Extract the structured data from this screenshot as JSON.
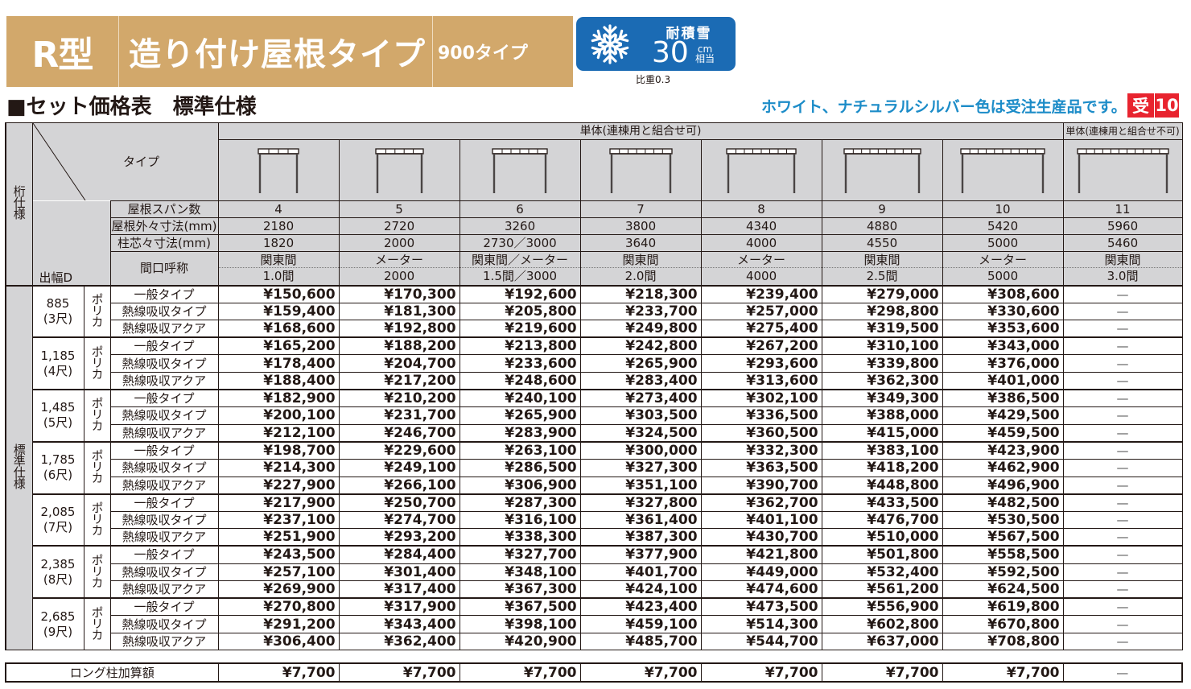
{
  "banner": {
    "model": "R型",
    "title": "造り付け屋根タイプ",
    "subtype": "900タイプ"
  },
  "snow_badge": {
    "icon": "snowflake-icon",
    "label": "耐積雪",
    "value": "30",
    "unit_top": "cm",
    "unit_bottom": "相当",
    "gravity": "比重0.3",
    "color": "#1b6bb4"
  },
  "section_title": "■セット価格表　標準仕様",
  "notice": {
    "text": "ホワイト、ナチュラルシルバー色は受注生産品です。",
    "badge_a": "受",
    "badge_b": "10",
    "text_color": "#1c8cc8",
    "badge_color": "#e8242f"
  },
  "table": {
    "side_label_top": "桁仕様",
    "side_label_bottom": "標準仕様",
    "type_label": "タイプ",
    "depth_label": "出幅D",
    "group_combinable": "単体(連棟用と組合せ可)",
    "group_single": "単体(連棟用と組合せ不可)",
    "row_labels": {
      "span_count": "屋根スパン数",
      "roof_outer": "屋根外々寸法(mm)",
      "post_center": "柱芯々寸法(mm)",
      "frontage": "間口呼称"
    },
    "columns": [
      {
        "icon_bays": 4,
        "span": "4",
        "roof_outer": "2180",
        "post_center": "1820",
        "frontage_top": "関東間",
        "frontage_bottom": "1.0間"
      },
      {
        "icon_bays": 5,
        "span": "5",
        "roof_outer": "2720",
        "post_center": "2000",
        "frontage_top": "メーター",
        "frontage_bottom": "2000"
      },
      {
        "icon_bays": 6,
        "span": "6",
        "roof_outer": "3260",
        "post_center": "2730／3000",
        "frontage_top": "関東間／メーター",
        "frontage_bottom": "1.5間／3000"
      },
      {
        "icon_bays": 7,
        "span": "7",
        "roof_outer": "3800",
        "post_center": "3640",
        "frontage_top": "関東間",
        "frontage_bottom": "2.0間"
      },
      {
        "icon_bays": 8,
        "span": "8",
        "roof_outer": "4340",
        "post_center": "4000",
        "frontage_top": "メーター",
        "frontage_bottom": "4000"
      },
      {
        "icon_bays": 9,
        "span": "9",
        "roof_outer": "4880",
        "post_center": "4550",
        "frontage_top": "関東間",
        "frontage_bottom": "2.5間"
      },
      {
        "icon_bays": 10,
        "span": "10",
        "roof_outer": "5420",
        "post_center": "5000",
        "frontage_top": "メーター",
        "frontage_bottom": "5000"
      },
      {
        "icon_bays": 11,
        "span": "11",
        "roof_outer": "5960",
        "post_center": "5460",
        "frontage_top": "関東間",
        "frontage_bottom": "3.0間"
      }
    ],
    "material": "ポリカ",
    "panel_types": [
      "一般タイプ",
      "熱線吸収タイプ",
      "熱線吸収アクア"
    ],
    "groups": [
      {
        "depth": "885",
        "shaku": "(3尺)",
        "rows": [
          [
            "¥150,600",
            "¥170,300",
            "¥192,600",
            "¥218,300",
            "¥239,400",
            "¥279,000",
            "¥308,600",
            "—"
          ],
          [
            "¥159,400",
            "¥181,300",
            "¥205,800",
            "¥233,700",
            "¥257,000",
            "¥298,800",
            "¥330,600",
            "—"
          ],
          [
            "¥168,600",
            "¥192,800",
            "¥219,600",
            "¥249,800",
            "¥275,400",
            "¥319,500",
            "¥353,600",
            "—"
          ]
        ]
      },
      {
        "depth": "1,185",
        "shaku": "(4尺)",
        "rows": [
          [
            "¥165,200",
            "¥188,200",
            "¥213,800",
            "¥242,800",
            "¥267,200",
            "¥310,100",
            "¥343,000",
            "—"
          ],
          [
            "¥178,400",
            "¥204,700",
            "¥233,600",
            "¥265,900",
            "¥293,600",
            "¥339,800",
            "¥376,000",
            "—"
          ],
          [
            "¥188,400",
            "¥217,200",
            "¥248,600",
            "¥283,400",
            "¥313,600",
            "¥362,300",
            "¥401,000",
            "—"
          ]
        ]
      },
      {
        "depth": "1,485",
        "shaku": "(5尺)",
        "rows": [
          [
            "¥182,900",
            "¥210,200",
            "¥240,100",
            "¥273,400",
            "¥302,100",
            "¥349,300",
            "¥386,500",
            "—"
          ],
          [
            "¥200,100",
            "¥231,700",
            "¥265,900",
            "¥303,500",
            "¥336,500",
            "¥388,000",
            "¥429,500",
            "—"
          ],
          [
            "¥212,100",
            "¥246,700",
            "¥283,900",
            "¥324,500",
            "¥360,500",
            "¥415,000",
            "¥459,500",
            "—"
          ]
        ]
      },
      {
        "depth": "1,785",
        "shaku": "(6尺)",
        "rows": [
          [
            "¥198,700",
            "¥229,600",
            "¥263,100",
            "¥300,000",
            "¥332,300",
            "¥383,100",
            "¥423,900",
            "—"
          ],
          [
            "¥214,300",
            "¥249,100",
            "¥286,500",
            "¥327,300",
            "¥363,500",
            "¥418,200",
            "¥462,900",
            "—"
          ],
          [
            "¥227,900",
            "¥266,100",
            "¥306,900",
            "¥351,100",
            "¥390,700",
            "¥448,800",
            "¥496,900",
            "—"
          ]
        ]
      },
      {
        "depth": "2,085",
        "shaku": "(7尺)",
        "rows": [
          [
            "¥217,900",
            "¥250,700",
            "¥287,300",
            "¥327,800",
            "¥362,700",
            "¥433,500",
            "¥482,500",
            "—"
          ],
          [
            "¥237,100",
            "¥274,700",
            "¥316,100",
            "¥361,400",
            "¥401,100",
            "¥476,700",
            "¥530,500",
            "—"
          ],
          [
            "¥251,900",
            "¥293,200",
            "¥338,300",
            "¥387,300",
            "¥430,700",
            "¥510,000",
            "¥567,500",
            "—"
          ]
        ]
      },
      {
        "depth": "2,385",
        "shaku": "(8尺)",
        "rows": [
          [
            "¥243,500",
            "¥284,400",
            "¥327,700",
            "¥377,900",
            "¥421,800",
            "¥501,800",
            "¥558,500",
            "—"
          ],
          [
            "¥257,100",
            "¥301,400",
            "¥348,100",
            "¥401,700",
            "¥449,000",
            "¥532,400",
            "¥592,500",
            "—"
          ],
          [
            "¥269,900",
            "¥317,400",
            "¥367,300",
            "¥424,100",
            "¥474,600",
            "¥561,200",
            "¥624,500",
            "—"
          ]
        ]
      },
      {
        "depth": "2,685",
        "shaku": "(9尺)",
        "rows": [
          [
            "¥270,800",
            "¥317,900",
            "¥367,500",
            "¥423,400",
            "¥473,500",
            "¥556,900",
            "¥619,800",
            "—"
          ],
          [
            "¥291,200",
            "¥343,400",
            "¥398,100",
            "¥459,100",
            "¥514,300",
            "¥602,800",
            "¥670,800",
            "—"
          ],
          [
            "¥306,400",
            "¥362,400",
            "¥420,900",
            "¥485,700",
            "¥544,700",
            "¥637,000",
            "¥708,800",
            "—"
          ]
        ]
      }
    ]
  },
  "long_post": {
    "label": "ロング柱加算額",
    "values": [
      "¥7,700",
      "¥7,700",
      "¥7,700",
      "¥7,700",
      "¥7,700",
      "¥7,700",
      "¥7,700",
      "—"
    ]
  }
}
